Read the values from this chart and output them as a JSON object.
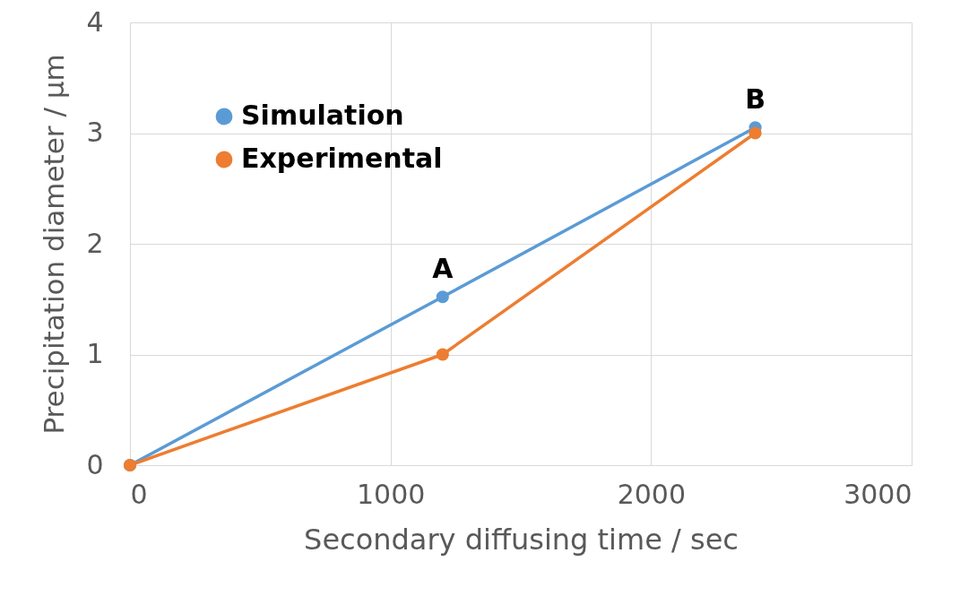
{
  "chart_data": {
    "type": "line",
    "xlabel": "Secondary diffusing time / sec",
    "ylabel": "Precipitation diameter / μm",
    "x": [
      0,
      1200,
      2400
    ],
    "series": [
      {
        "name": "Simulation",
        "color": "#5b9bd5",
        "values": [
          0,
          1.52,
          3.05
        ]
      },
      {
        "name": "Experimental",
        "color": "#ed7d31",
        "values": [
          0,
          1.0,
          3.0
        ]
      }
    ],
    "xlim": [
      0,
      3000
    ],
    "xticks": [
      0,
      1000,
      2000,
      3000
    ],
    "ylim": [
      0,
      4
    ],
    "yticks": [
      0,
      1,
      2,
      3,
      4
    ],
    "grid": true,
    "legend": "top left",
    "marker": "circle",
    "line_style": "solid",
    "annotations": [
      {
        "text": "A",
        "x": 1200,
        "y": 1.52
      },
      {
        "text": "B",
        "x": 2400,
        "y": 3.05
      }
    ]
  }
}
